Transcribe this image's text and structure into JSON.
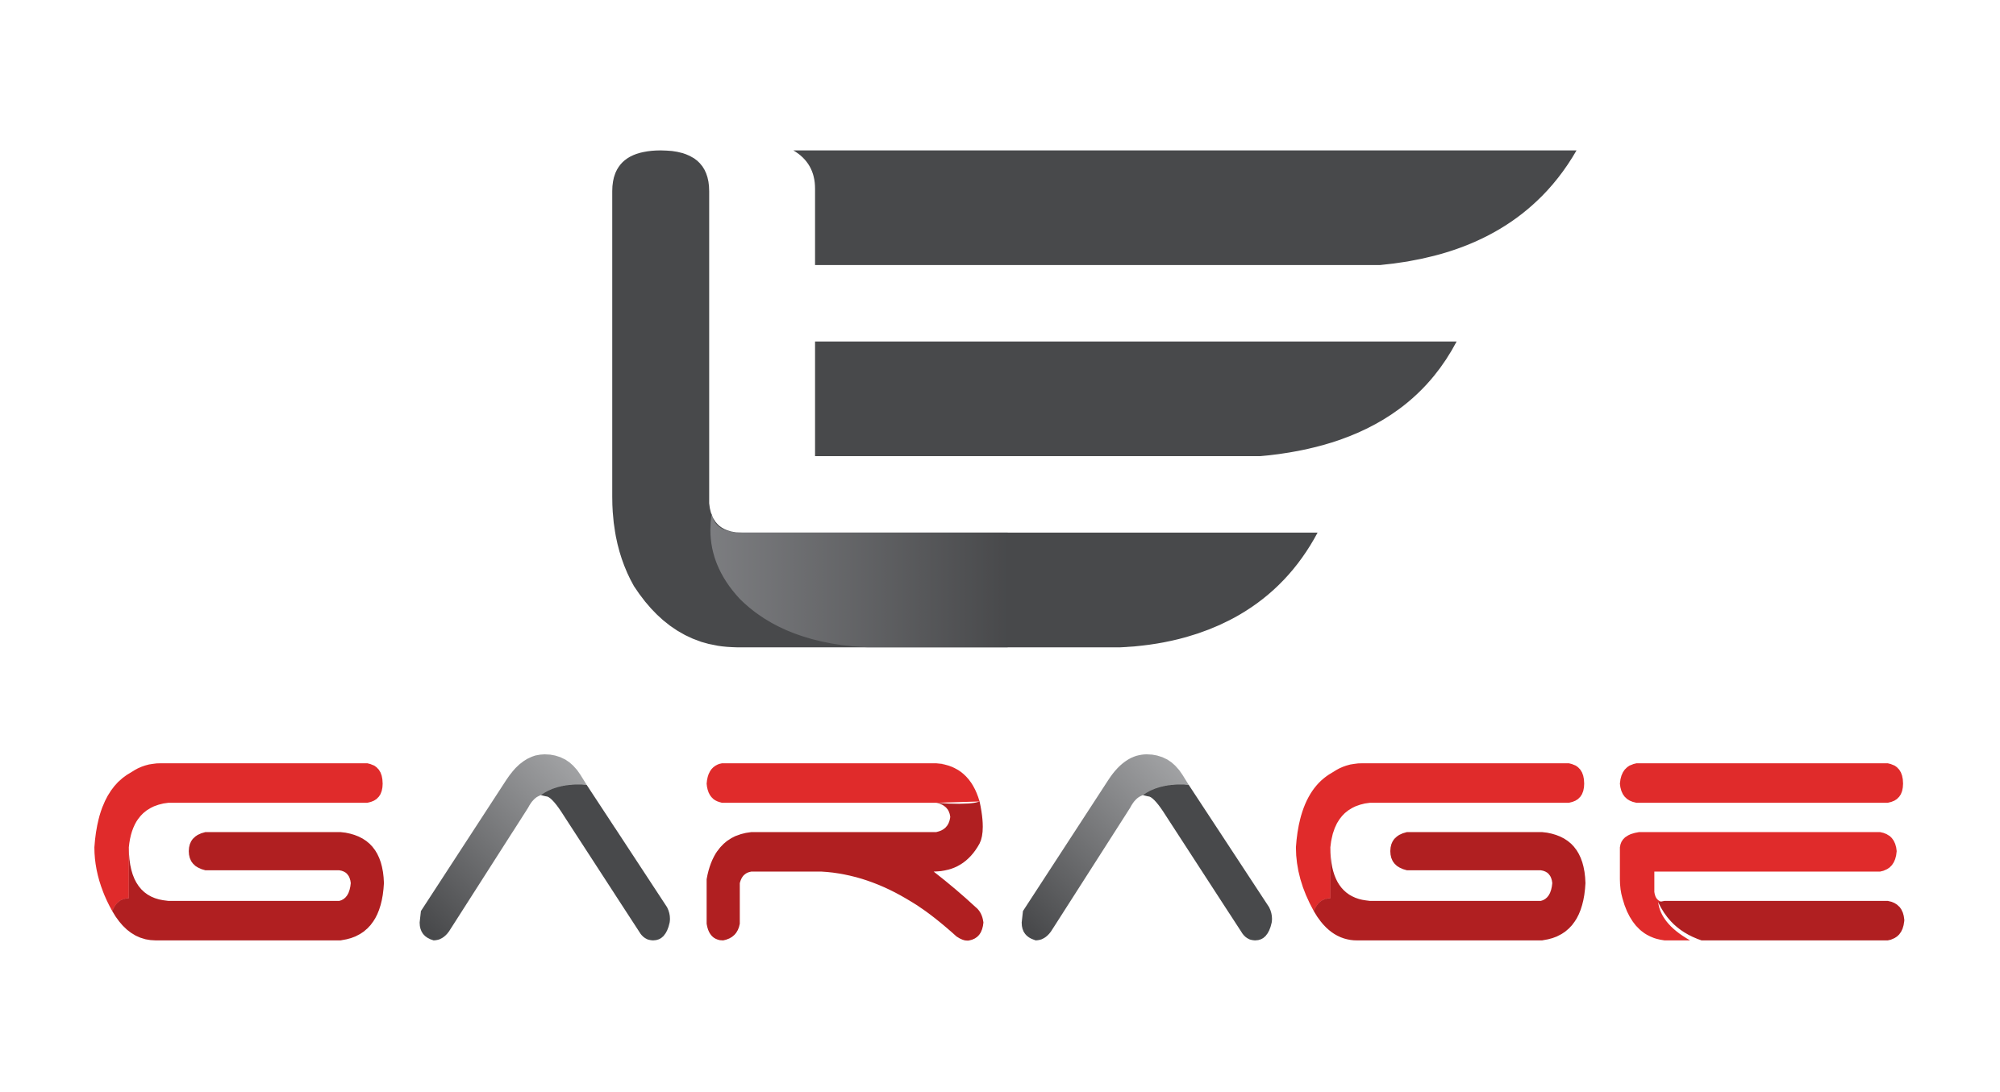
{
  "logo": {
    "wordmark": "GARAGE",
    "monogram_icon": "winged-le-monogram-icon"
  },
  "colors": {
    "background": "#ffffff",
    "monogram_dark": "#48494b",
    "monogram_light": "#7c7d80",
    "wordmark_red": "#e02b2b",
    "wordmark_dark_red": "#b01f21",
    "wordmark_gray": "#48494b",
    "wordmark_light_gray": "#a3a4a6"
  }
}
